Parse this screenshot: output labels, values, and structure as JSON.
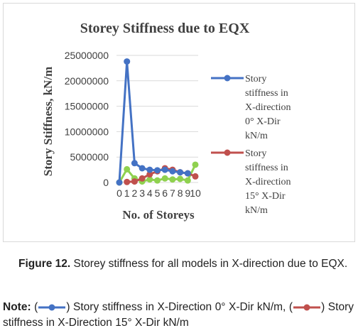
{
  "chart_data": {
    "type": "line",
    "title": "Storey Stiffness due to EQX",
    "xlabel": "No. of Storeys",
    "ylabel": "Story Stiffness, kN/m",
    "categories": [
      "0",
      "1",
      "2",
      "3",
      "4",
      "5",
      "6",
      "7",
      "8",
      "9",
      "10"
    ],
    "ylim": [
      0,
      25000000
    ],
    "yticks": [
      0,
      5000000,
      10000000,
      15000000,
      20000000,
      25000000
    ],
    "ytick_labels": [
      "0",
      "5000000",
      "10000000",
      "15000000",
      "20000000",
      "25000000"
    ],
    "grid": "horizontal",
    "legend_position": "right",
    "series": [
      {
        "name": "Story stiffness in X-direction 0° X-Dir kN/m",
        "legend_lines": [
          "Story",
          "stiffness in",
          "X-direction",
          "0° X-Dir",
          "kN/m"
        ],
        "color": "#4472c4",
        "values": [
          0,
          23800000,
          3800000,
          2800000,
          2500000,
          2400000,
          2500000,
          2200000,
          2000000,
          1800000,
          null
        ]
      },
      {
        "name": "Story stiffness in X-direction 15° X-Dir kN/m",
        "legend_lines": [
          "Story",
          "stiffness in",
          "X-direction",
          "15° X-Dir",
          "kN/m"
        ],
        "color": "#c0504d",
        "values": [
          null,
          100000,
          200000,
          800000,
          1600000,
          2200000,
          2800000,
          2500000,
          2000000,
          1800000,
          1200000
        ]
      },
      {
        "name": "",
        "color": "#8fd14f",
        "values": [
          0,
          2600000,
          800000,
          200000,
          600000,
          400000,
          800000,
          600000,
          700000,
          400000,
          3500000
        ]
      }
    ]
  },
  "caption": {
    "label": "Figure 12.",
    "text": " Storey stiffness for all models in X-direction due to EQX."
  },
  "note": {
    "label": "Note:",
    "open_paren": "(",
    "item1": ") Story stiffness in X-Direction 0° X-Dir kN/m,",
    "item2": ") Story stiffness in X-Direction 15° X-Dir kN/m"
  }
}
